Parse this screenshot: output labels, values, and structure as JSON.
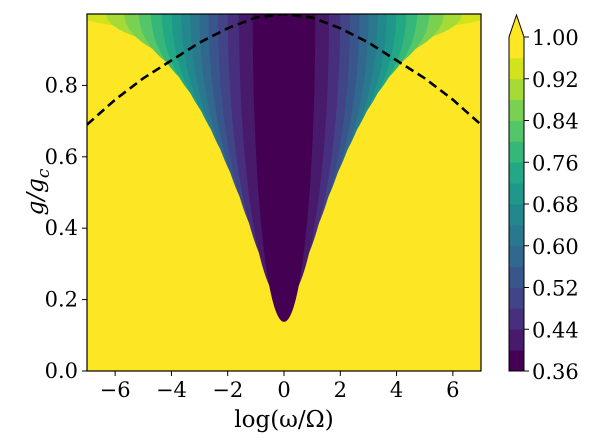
{
  "chart_data": {
    "type": "heatmap",
    "title": "",
    "xlabel": "log(ω/Ω)",
    "ylabel": "g/g",
    "ylabel_subscript": "c",
    "x_range": [
      -7,
      7
    ],
    "y_range": [
      0.0,
      1.0
    ],
    "x_ticks": [
      -6,
      -4,
      -2,
      0,
      2,
      4,
      6
    ],
    "x_tick_labels": [
      "−6",
      "−4",
      "−2",
      "0",
      "2",
      "4",
      "6"
    ],
    "y_ticks": [
      0.0,
      0.2,
      0.4,
      0.6,
      0.8
    ],
    "y_tick_labels": [
      "0.0",
      "0.2",
      "0.4",
      "0.6",
      "0.8"
    ],
    "colorbar": {
      "colormap": "viridis",
      "min": 0.36,
      "max": 1.0,
      "extend": "max",
      "levels": [
        0.36,
        0.4,
        0.44,
        0.48,
        0.52,
        0.56,
        0.6,
        0.64,
        0.68,
        0.72,
        0.76,
        0.8,
        0.84,
        0.88,
        0.92,
        0.96,
        1.0
      ],
      "ticks": [
        0.36,
        0.44,
        0.52,
        0.6,
        0.68,
        0.76,
        0.84,
        0.92,
        1.0
      ],
      "tick_labels": [
        "0.36",
        "0.44",
        "0.52",
        "0.60",
        "0.68",
        "0.76",
        "0.84",
        "0.92",
        "1.00"
      ],
      "level_colors": [
        "#440154",
        "#481a6c",
        "#472f7d",
        "#414487",
        "#39568c",
        "#31688e",
        "#2a788e",
        "#23888e",
        "#1f988b",
        "#22a884",
        "#35b779",
        "#54c568",
        "#7ad151",
        "#a5db36",
        "#d2e21b",
        "#fde725"
      ]
    },
    "dashed_curve": {
      "style": "dashed",
      "color": "#000000",
      "x": [
        -7,
        -6,
        -5,
        -4,
        -3,
        -2,
        -1,
        0,
        1,
        2,
        3,
        4,
        5,
        6,
        7
      ],
      "y": [
        0.69,
        0.76,
        0.82,
        0.87,
        0.92,
        0.96,
        0.99,
        1.0,
        0.99,
        0.96,
        0.92,
        0.87,
        0.82,
        0.76,
        0.69
      ]
    }
  }
}
